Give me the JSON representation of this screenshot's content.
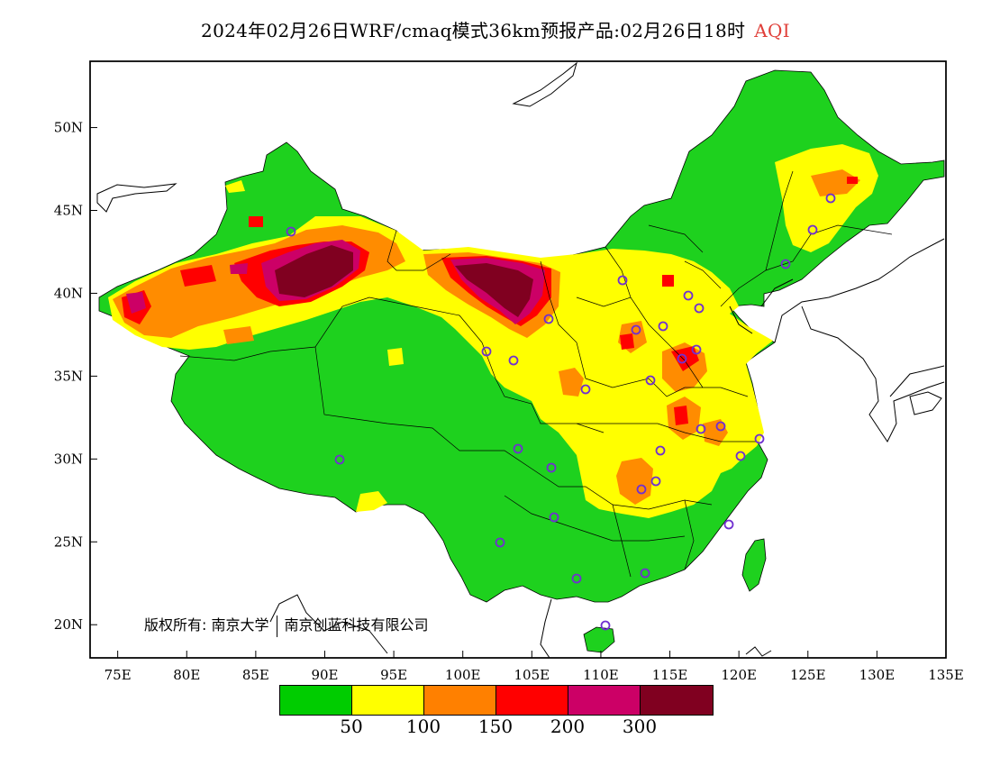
{
  "title": {
    "main": "2024年02月26日WRF/cmaq模式36km预报产品:02月26日18时",
    "variable": "AQI"
  },
  "axes": {
    "x_ticks": [
      "75E",
      "80E",
      "85E",
      "90E",
      "95E",
      "100E",
      "105E",
      "110E",
      "115E",
      "120E",
      "125E",
      "130E",
      "135E"
    ],
    "y_ticks": [
      "20N",
      "25N",
      "30N",
      "35N",
      "40N",
      "45N",
      "50N"
    ],
    "lon_range": [
      73,
      135
    ],
    "lat_range": [
      18,
      54
    ]
  },
  "copyright": {
    "label": "版权所有:",
    "org1": "南京大学",
    "org2": "南京创蓝科技有限公司"
  },
  "legend": {
    "colors": [
      "#00cc00",
      "#ffff00",
      "#ff8000",
      "#ff0000",
      "#cc0066",
      "#800020"
    ],
    "labels": [
      "50",
      "100",
      "150",
      "200",
      "300"
    ]
  },
  "colors": {
    "good": "#1ed11e",
    "moderate": "#ffff00",
    "usg": "#ff8c00",
    "unhealthy": "#ff0000",
    "very_unhealthy": "#cc0066",
    "hazardous": "#800020",
    "station_marker": "#7030d0"
  }
}
